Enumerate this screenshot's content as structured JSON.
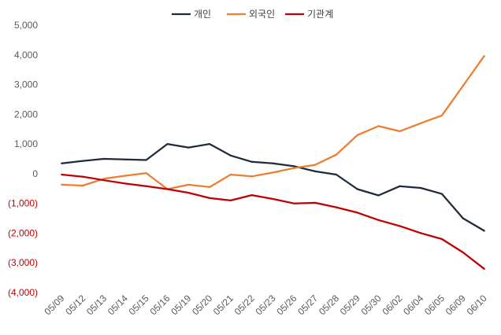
{
  "chart_data": {
    "type": "line",
    "categories": [
      "05/09",
      "05/12",
      "05/13",
      "05/14",
      "05/15",
      "05/16",
      "05/19",
      "05/20",
      "05/21",
      "05/22",
      "05/23",
      "05/26",
      "05/27",
      "05/28",
      "05/29",
      "05/30",
      "06/02",
      "06/04",
      "06/05",
      "06/09",
      "06/10"
    ],
    "series": [
      {
        "name": "개인",
        "color": "#1f2a3a",
        "values": [
          350,
          430,
          500,
          480,
          460,
          1000,
          880,
          1000,
          610,
          400,
          350,
          250,
          80,
          -30,
          -520,
          -730,
          -420,
          -480,
          -680,
          -1500,
          -1920
        ]
      },
      {
        "name": "외국인",
        "color": "#ed7d31",
        "values": [
          -370,
          -400,
          -170,
          -70,
          20,
          -520,
          -370,
          -450,
          -30,
          -90,
          40,
          190,
          300,
          640,
          1300,
          1600,
          1430,
          1700,
          1960,
          2960,
          3960
        ]
      },
      {
        "name": "기관계",
        "color": "#c00000",
        "values": [
          -30,
          -100,
          -220,
          -330,
          -420,
          -520,
          -640,
          -820,
          -900,
          -720,
          -850,
          -1000,
          -980,
          -1130,
          -1310,
          -1560,
          -1760,
          -2000,
          -2200,
          -2650,
          -3200
        ]
      }
    ],
    "y_ticks": [
      "5,000",
      "4,000",
      "3,000",
      "2,000",
      "1,000",
      "0",
      "(1,000)",
      "(2,000)",
      "(3,000)",
      "(4,000)"
    ],
    "ylim": [
      -4000,
      5000
    ],
    "negative_tick_color": "#c00000",
    "grid": false,
    "legend_position": "top-center"
  }
}
